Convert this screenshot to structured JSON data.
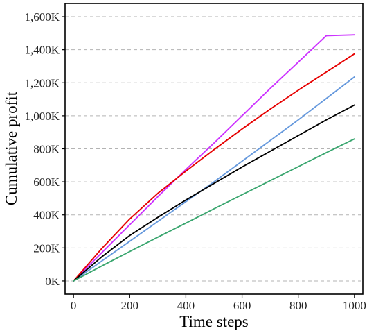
{
  "chart_data": {
    "type": "line",
    "title": "",
    "xlabel": "Time steps",
    "ylabel": "Cumulative profit",
    "xlim": [
      -30,
      1030
    ],
    "ylim": [
      -80000,
      1680000
    ],
    "x_ticks": [
      0,
      200,
      400,
      600,
      800,
      1000
    ],
    "x_tick_labels": [
      "0",
      "200",
      "400",
      "600",
      "800",
      "1000"
    ],
    "y_ticks": [
      0,
      200000,
      400000,
      600000,
      800000,
      1000000,
      1200000,
      1400000,
      1600000
    ],
    "y_tick_labels": [
      "0K",
      "200K",
      "400K",
      "600K",
      "800K",
      "1,000K",
      "1,200K",
      "1,400K",
      "1,600K"
    ],
    "grid": {
      "horizontal": true,
      "style": "dashed",
      "color": "#b3b3b3"
    },
    "x": [
      0,
      100,
      200,
      300,
      400,
      500,
      600,
      700,
      800,
      900,
      1000
    ],
    "series": [
      {
        "color": "#cc33ff",
        "values": [
          0,
          170000,
          340000,
          510000,
          675000,
          835000,
          1000000,
          1165000,
          1325000,
          1485000,
          1490000
        ]
      },
      {
        "color": "#e60000",
        "values": [
          0,
          195000,
          375000,
          530000,
          665000,
          795000,
          920000,
          1040000,
          1155000,
          1265000,
          1375000
        ]
      },
      {
        "color": "#6699dd",
        "values": [
          0,
          120000,
          240000,
          360000,
          480000,
          600000,
          725000,
          850000,
          975000,
          1105000,
          1235000
        ]
      },
      {
        "color": "#000000",
        "values": [
          0,
          145000,
          275000,
          385000,
          490000,
          590000,
          690000,
          785000,
          880000,
          975000,
          1065000
        ]
      },
      {
        "color": "#3aa66f",
        "values": [
          0,
          90000,
          178000,
          265000,
          350000,
          437000,
          522000,
          607000,
          692000,
          777000,
          860000
        ]
      }
    ]
  }
}
